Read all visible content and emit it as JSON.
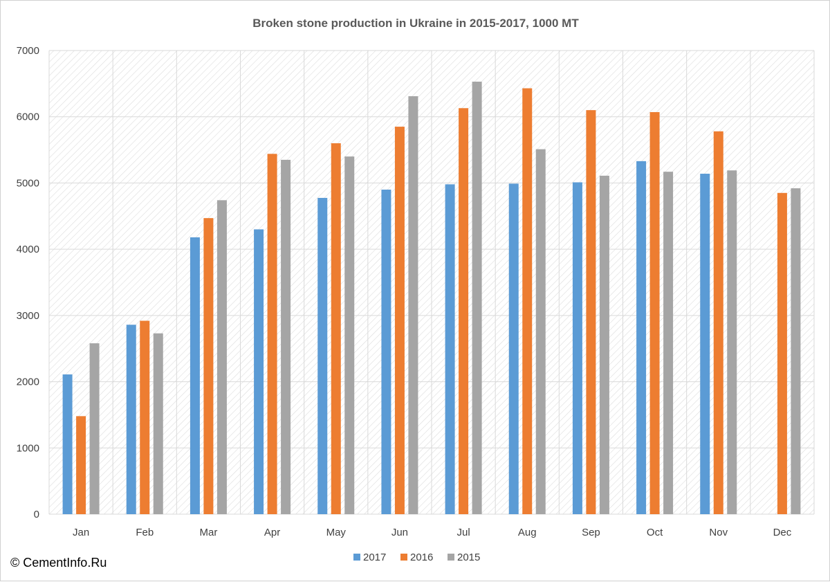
{
  "chart_data": {
    "type": "bar",
    "title": "Broken stone production in Ukraine in 2015-2017, 1000 MT",
    "categories": [
      "Jan",
      "Feb",
      "Mar",
      "Apr",
      "May",
      "Jun",
      "Jul",
      "Aug",
      "Sep",
      "Oct",
      "Nov",
      "Dec"
    ],
    "series": [
      {
        "name": "2017",
        "color": "#5b9bd5",
        "values": [
          2110,
          2860,
          4180,
          4300,
          4775,
          4900,
          4980,
          4990,
          5010,
          5330,
          5140,
          null
        ]
      },
      {
        "name": "2016",
        "color": "#ed7d31",
        "values": [
          1480,
          2920,
          4470,
          5440,
          5600,
          5850,
          6130,
          6430,
          6100,
          6070,
          5780,
          4850
        ]
      },
      {
        "name": "2015",
        "color": "#a5a5a5",
        "values": [
          2580,
          2730,
          4740,
          5350,
          5400,
          6310,
          6530,
          5510,
          5110,
          5170,
          5190,
          4920
        ]
      }
    ],
    "y_ticks": [
      "0",
      "1000",
      "2000",
      "3000",
      "4000",
      "5000",
      "6000",
      "7000"
    ],
    "ylim": [
      0,
      7000
    ],
    "xlabel": "",
    "ylabel": "",
    "grid": true,
    "legend_position": "bottom",
    "background_pattern": "diagonal-hatch"
  },
  "credit": "© CementInfo.Ru"
}
